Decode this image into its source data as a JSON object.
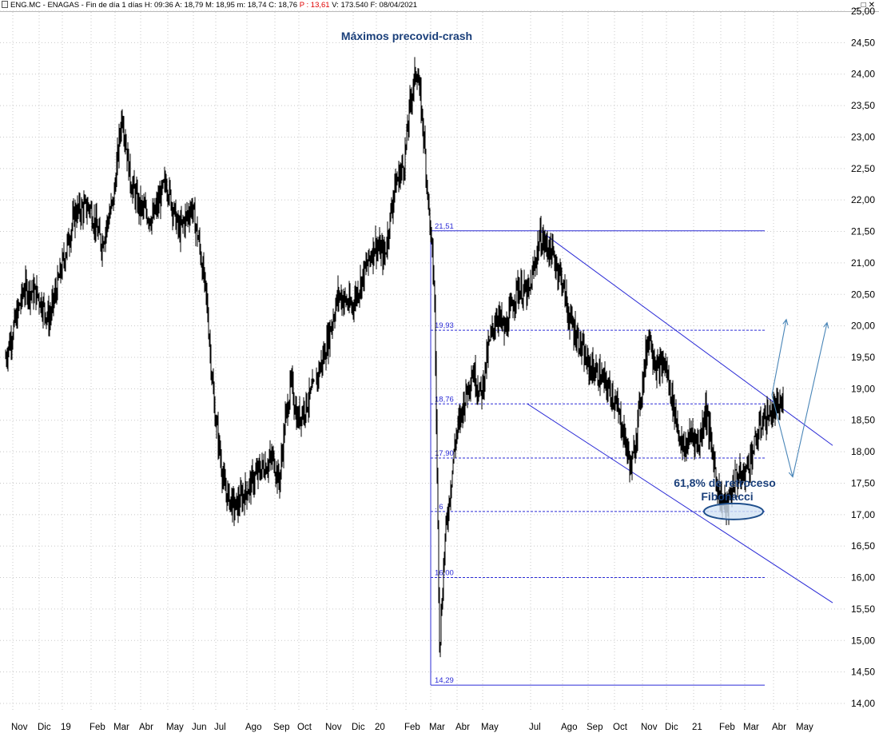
{
  "window": {
    "title_parts": [
      {
        "text": "ENG.MC - ENAGAS - Fin de día 1 días  H: 09:36  A: 18,79  M: 18,95  m: 18,74  C: 18,76  ",
        "neg": false
      },
      {
        "text": "P : 13,61",
        "neg": true
      },
      {
        "text": "  V: 173.540  F: 08/04/2021",
        "neg": false
      }
    ],
    "minimize": "_",
    "restore": "□",
    "close": "✕"
  },
  "chart_data": {
    "type": "candlestick",
    "symbol": "ENG.MC - ENAGAS",
    "interval": "Fin de día 1 días",
    "ylim": [
      14,
      25
    ],
    "y_ticks": [
      "25,00",
      "24,50",
      "24,00",
      "23,50",
      "23,00",
      "22,50",
      "22,00",
      "21,50",
      "21,00",
      "20,50",
      "20,00",
      "19,50",
      "19,00",
      "18,50",
      "18,00",
      "17,50",
      "17,00",
      "16,50",
      "16,00",
      "15,50",
      "15,00",
      "14,50",
      "14,00"
    ],
    "x_labels": [
      "Nov",
      "Dic",
      "19",
      "Feb",
      "Mar",
      "Abr",
      "May",
      "Jun",
      "Jul",
      "Ago",
      "Sep",
      "Oct",
      "Nov",
      "Dic",
      "20",
      "Feb",
      "Mar",
      "Abr",
      "May",
      "Jul",
      "Ago",
      "Sep",
      "Oct",
      "Nov",
      "Dic",
      "21",
      "Feb",
      "Mar",
      "Abr",
      "May"
    ],
    "price_path": [
      [
        "Oct 2018",
        19.5
      ],
      [
        "Nov 2018",
        20.6
      ],
      [
        "Dic 2018",
        20.5
      ],
      [
        "Dic 2018",
        20.1
      ],
      [
        "19",
        21.8
      ],
      [
        "Feb 2019",
        21.9
      ],
      [
        "Feb 2019",
        21.3
      ],
      [
        "Mar 2019",
        22.0
      ],
      [
        "Mar 2019",
        23.4
      ],
      [
        "Mar 2019",
        22.3
      ],
      [
        "Abr 2019",
        21.9
      ],
      [
        "Abr 2019",
        21.7
      ],
      [
        "May 2019",
        22.3
      ],
      [
        "May 2019",
        21.5
      ],
      [
        "Jun 2019",
        21.9
      ],
      [
        "Jun 2019",
        21.3
      ],
      [
        "Jun 2019",
        20.4
      ],
      [
        "Jul 2019",
        18.7
      ],
      [
        "Jul 2019",
        17.4
      ],
      [
        "Jul 2019",
        17.1
      ],
      [
        "Ago 2019",
        17.7
      ],
      [
        "Sep 2019",
        17.9
      ],
      [
        "Sep 2019",
        17.5
      ],
      [
        "Sep 2019",
        18.5
      ],
      [
        "Sep 2019",
        19.1
      ],
      [
        "Oct 2019",
        18.5
      ],
      [
        "Oct 2019",
        18.9
      ],
      [
        "Nov 2019",
        19.6
      ],
      [
        "Nov 2019",
        20.5
      ],
      [
        "Dic 2019",
        20.3
      ],
      [
        "Dic 2019",
        20.8
      ],
      [
        "20",
        21.3
      ],
      [
        "20",
        21.1
      ],
      [
        "20",
        22.2
      ],
      [
        "Feb 2020",
        22.6
      ],
      [
        "Feb 2020",
        23.6
      ],
      [
        "Feb 2020",
        24.1
      ],
      [
        "Feb 2020",
        23.2
      ],
      [
        "Mar 2020",
        21.8
      ],
      [
        "Mar 2020",
        20.6
      ],
      [
        "Mar 2020",
        14.9
      ],
      [
        "Mar 2020",
        16.6
      ],
      [
        "Mar 2020",
        17.4
      ],
      [
        "Abr 2020",
        18.2
      ],
      [
        "Abr 2020",
        18.8
      ],
      [
        "Abr 2020",
        19.3
      ],
      [
        "May 2020",
        18.9
      ],
      [
        "May 2020",
        19.7
      ],
      [
        "May 2020",
        20.2
      ],
      [
        "Jun 2020",
        19.9
      ],
      [
        "Jun 2020",
        20.6
      ],
      [
        "Jul 2020",
        20.5
      ],
      [
        "Jul 2020",
        21.4
      ],
      [
        "Jul 2020",
        21.2
      ],
      [
        "Ago 2020",
        20.8
      ],
      [
        "Ago 2020",
        20.1
      ],
      [
        "Ago 2020",
        19.8
      ],
      [
        "Sep 2020",
        19.4
      ],
      [
        "Sep 2020",
        19.2
      ],
      [
        "Oct 2020",
        18.9
      ],
      [
        "Oct 2020",
        18.4
      ],
      [
        "Oct 2020",
        17.7
      ],
      [
        "Nov 2020",
        18.9
      ],
      [
        "Nov 2020",
        19.9
      ],
      [
        "Nov 2020",
        19.3
      ],
      [
        "Dic 2020",
        19.4
      ],
      [
        "Dic 2020",
        18.7
      ],
      [
        "Dic 2020",
        18.0
      ],
      [
        "21",
        18.3
      ],
      [
        "21",
        18.1
      ],
      [
        "21",
        18.7
      ],
      [
        "21",
        18.0
      ],
      [
        "Feb 2021",
        17.3
      ],
      [
        "Feb 2021",
        17.1
      ],
      [
        "Feb 2021",
        17.6
      ],
      [
        "Mar 2021",
        17.6
      ],
      [
        "Mar 2021",
        18.0
      ],
      [
        "Mar 2021",
        18.5
      ],
      [
        "Abr 2021",
        18.76
      ]
    ],
    "fibonacci": {
      "top": 21.51,
      "bottom": 14.29,
      "levels": [
        {
          "value": 21.51,
          "label": "21,51",
          "style": "solid"
        },
        {
          "value": 19.93,
          "label": "19,93",
          "style": "dashed"
        },
        {
          "value": 18.76,
          "label": "18,76",
          "style": "dashed"
        },
        {
          "value": 17.9,
          "label": "17,90",
          "style": "dashed"
        },
        {
          "value": 17.05,
          "label": "..6",
          "style": "dashed"
        },
        {
          "value": 16.0,
          "label": "16,00",
          "style": "dashed"
        },
        {
          "value": 14.29,
          "label": "14,29",
          "style": "solid"
        }
      ]
    },
    "trend_channel": {
      "upper": [
        [
          "Jul 2020",
          21.5
        ],
        [
          "May 2021",
          18.1
        ]
      ],
      "lower": [
        [
          "Jul 2020",
          18.76
        ],
        [
          "May 2021",
          15.6
        ]
      ]
    },
    "arrows": [
      {
        "from": [
          "Abr 2021",
          18.9
        ],
        "to": [
          "Abr 2021",
          20.1
        ]
      },
      {
        "from": [
          "Abr 2021",
          18.9
        ],
        "to": [
          "May 2021",
          17.6
        ]
      },
      {
        "from": [
          "May 2021",
          17.6
        ],
        "to": [
          "May 2021",
          20.05
        ]
      }
    ],
    "annotations": {
      "top_label": "Máximos precovid-crash",
      "fib_label_line1": "61,8% de retroceso",
      "fib_label_line2": "Fibonacci"
    },
    "grid": true,
    "colors": {
      "price": "#000000",
      "grid": "#c8c8c8",
      "drawing": "#2b2bd6",
      "arrow": "#4a86b8",
      "annotation": "#1a3f7a",
      "ellipse_fill": "#d3e3f5",
      "ellipse_stroke": "#1f4f8c"
    }
  }
}
